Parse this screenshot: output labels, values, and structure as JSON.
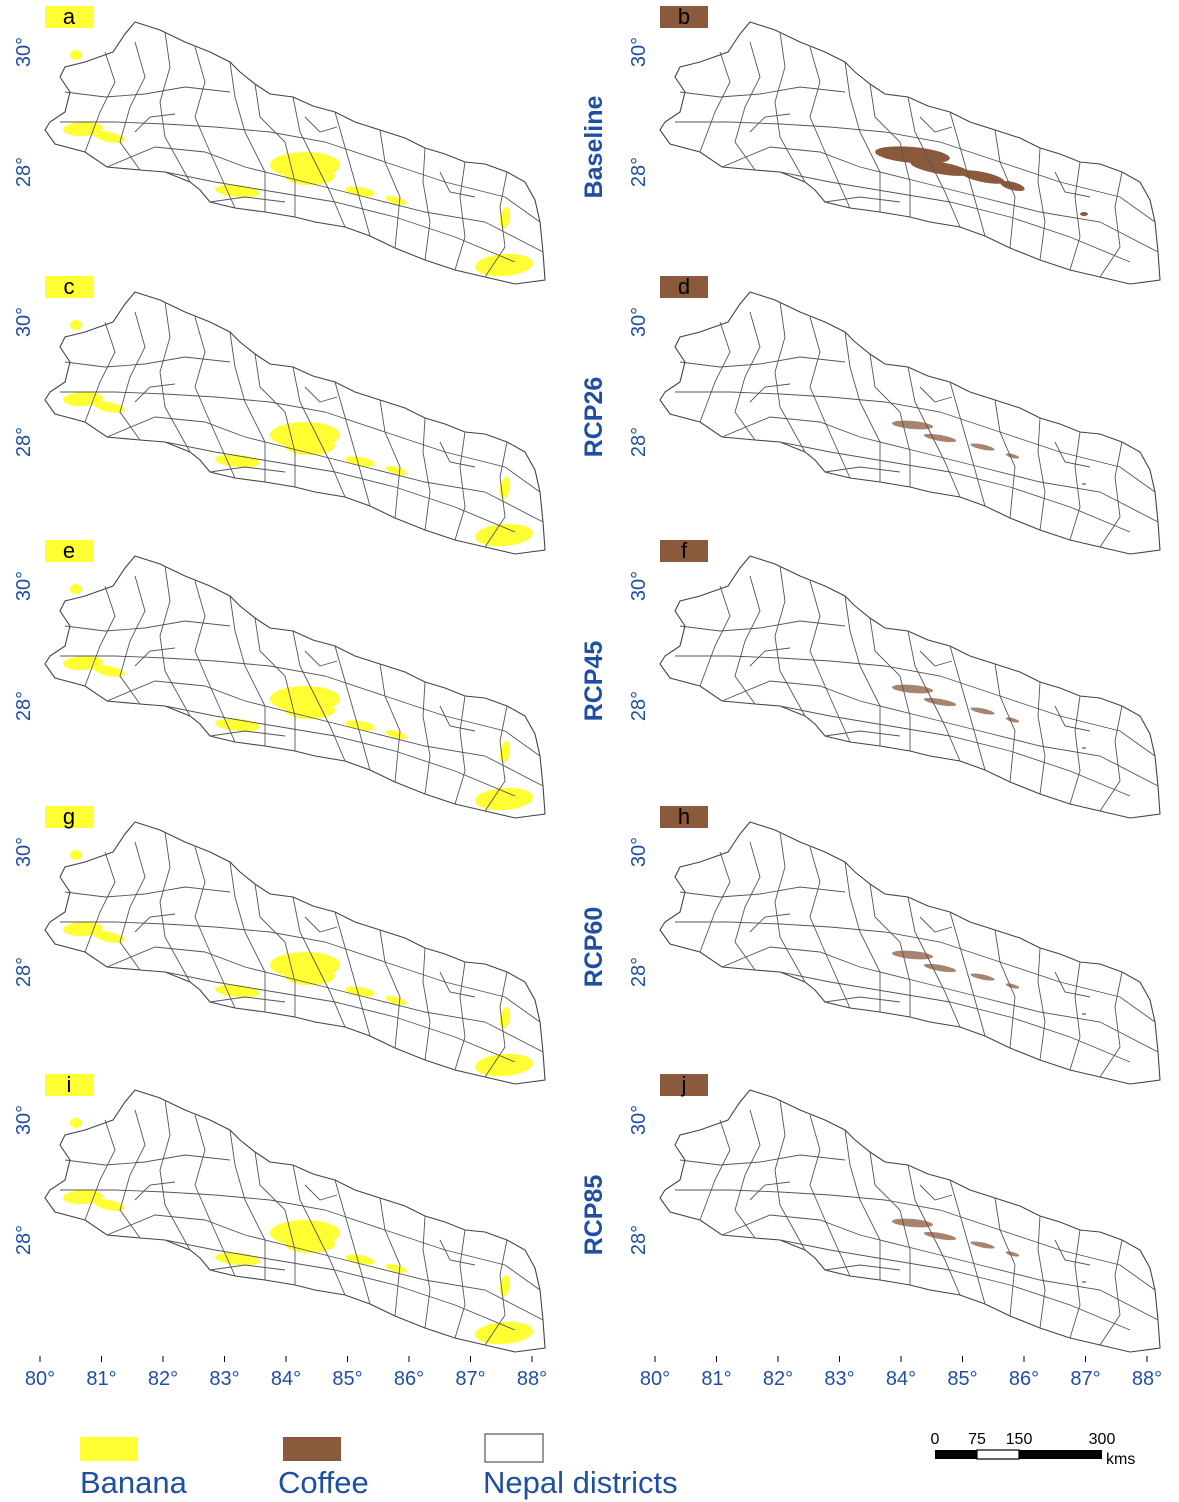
{
  "panels": [
    {
      "letter": "a",
      "crop": "banana",
      "scenario": "Baseline"
    },
    {
      "letter": "b",
      "crop": "coffee",
      "scenario": "Baseline"
    },
    {
      "letter": "c",
      "crop": "banana",
      "scenario": "RCP26"
    },
    {
      "letter": "d",
      "crop": "coffee",
      "scenario": "RCP26"
    },
    {
      "letter": "e",
      "crop": "banana",
      "scenario": "RCP45"
    },
    {
      "letter": "f",
      "crop": "coffee",
      "scenario": "RCP45"
    },
    {
      "letter": "g",
      "crop": "banana",
      "scenario": "RCP60"
    },
    {
      "letter": "h",
      "crop": "coffee",
      "scenario": "RCP60"
    },
    {
      "letter": "i",
      "crop": "banana",
      "scenario": "RCP85"
    },
    {
      "letter": "j",
      "crop": "coffee",
      "scenario": "RCP85"
    }
  ],
  "scenarios": [
    "Baseline",
    "RCP26",
    "RCP45",
    "RCP60",
    "RCP85"
  ],
  "latitude_labels": [
    "30°",
    "28°"
  ],
  "longitude_labels": [
    "80°",
    "81°",
    "82°",
    "83°",
    "84°",
    "85°",
    "86°",
    "87°",
    "88°"
  ],
  "legend": {
    "banana": {
      "label": "Banana",
      "color": "#ffff33"
    },
    "coffee": {
      "label": "Coffee",
      "color": "#8b5a3c"
    },
    "districts": {
      "label": "Nepal districts",
      "color": "#ffffff"
    }
  },
  "scale_bar": {
    "ticks": [
      "0",
      "75",
      "150",
      "300"
    ],
    "unit": "kms"
  },
  "colors": {
    "label_blue": "#1f4fa3",
    "district_line": "#555555"
  }
}
